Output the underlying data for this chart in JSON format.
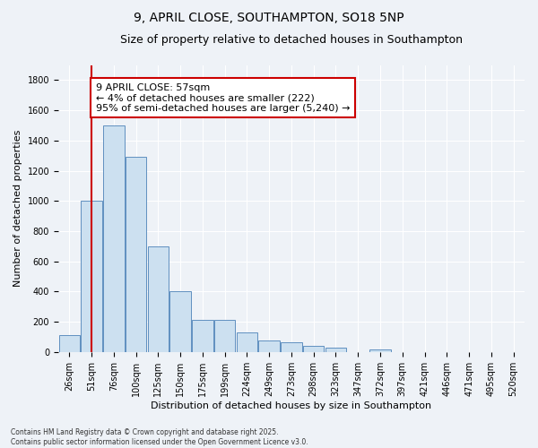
{
  "title_line1": "9, APRIL CLOSE, SOUTHAMPTON, SO18 5NP",
  "title_line2": "Size of property relative to detached houses in Southampton",
  "xlabel": "Distribution of detached houses by size in Southampton",
  "ylabel": "Number of detached properties",
  "annotation_title": "9 APRIL CLOSE: 57sqm",
  "annotation_line2": "← 4% of detached houses are smaller (222)",
  "annotation_line3": "95% of semi-detached houses are larger (5,240) →",
  "categories": [
    "26sqm",
    "51sqm",
    "76sqm",
    "100sqm",
    "125sqm",
    "150sqm",
    "175sqm",
    "199sqm",
    "224sqm",
    "249sqm",
    "273sqm",
    "298sqm",
    "323sqm",
    "347sqm",
    "372sqm",
    "397sqm",
    "421sqm",
    "446sqm",
    "471sqm",
    "495sqm",
    "520sqm"
  ],
  "values": [
    110,
    1000,
    1500,
    1290,
    700,
    400,
    215,
    215,
    130,
    75,
    65,
    40,
    30,
    0,
    15,
    0,
    0,
    0,
    0,
    0,
    0
  ],
  "bar_color": "#cce0f0",
  "bar_edge_color": "#6090c0",
  "vline_x_index": 1,
  "ylim": [
    0,
    1900
  ],
  "yticks": [
    0,
    200,
    400,
    600,
    800,
    1000,
    1200,
    1400,
    1600,
    1800
  ],
  "background_color": "#eef2f7",
  "grid_color": "#ffffff",
  "annotation_font_size": 8,
  "title1_fontsize": 10,
  "title2_fontsize": 9,
  "xlabel_fontsize": 8,
  "ylabel_fontsize": 8,
  "tick_fontsize": 7,
  "footer_line1": "Contains HM Land Registry data © Crown copyright and database right 2025.",
  "footer_line2": "Contains public sector information licensed under the Open Government Licence v3.0."
}
